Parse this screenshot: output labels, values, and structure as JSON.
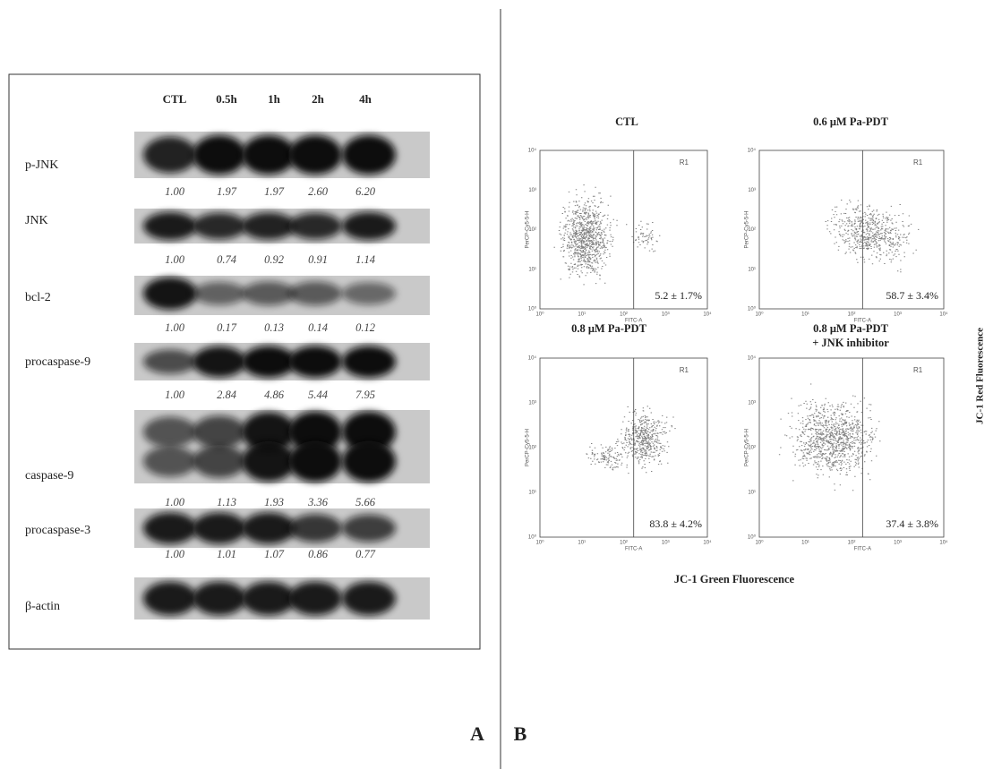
{
  "panel_a": {
    "label": "A",
    "lanes": [
      "CTL",
      "0.5h",
      "1h",
      "2h",
      "4h"
    ],
    "rows": [
      {
        "name": "p-JNK",
        "values": [
          "1.00",
          "1.97",
          "1.97",
          "2.60",
          "6.20"
        ]
      },
      {
        "name": "JNK",
        "values": [
          "1.00",
          "0.74",
          "0.92",
          "0.91",
          "1.14"
        ]
      },
      {
        "name": "bcl-2",
        "values": [
          "1.00",
          "0.17",
          "0.13",
          "0.14",
          "0.12"
        ]
      },
      {
        "name": "procaspase-9",
        "values": [
          "1.00",
          "2.84",
          "4.86",
          "5.44",
          "7.95"
        ]
      },
      {
        "name": "caspase-9",
        "values": [
          "1.00",
          "1.13",
          "1.93",
          "3.36",
          "5.66"
        ]
      },
      {
        "name": "procaspase-3",
        "values": [
          "1.00",
          "1.01",
          "1.07",
          "0.86",
          "0.77"
        ]
      },
      {
        "name": "β-actin"
      }
    ]
  },
  "panel_b": {
    "label": "B",
    "x_title": "JC-1 Green Fluorescence",
    "y_title": "JC-1 Red Fluorescence",
    "x_axis_label": "FITC-A",
    "y_axis_label": "PerCP-Cy5-5-H",
    "gate": "R1",
    "ticks": [
      "10⁰",
      "10¹",
      "10²",
      "10³",
      "10⁴"
    ],
    "plots": [
      {
        "title": "CTL",
        "result": "5.2 ± 1.7%"
      },
      {
        "title": "0.6 μM Pa-PDT",
        "result": "58.7 ± 3.4%"
      },
      {
        "title": "0.8 μM Pa-PDT",
        "result": "83.8 ± 4.2%"
      },
      {
        "title": "0.8 μM Pa-PDT",
        "subtitle": "+ JNK inhibitor",
        "result": "37.4 ± 3.8%"
      }
    ]
  }
}
